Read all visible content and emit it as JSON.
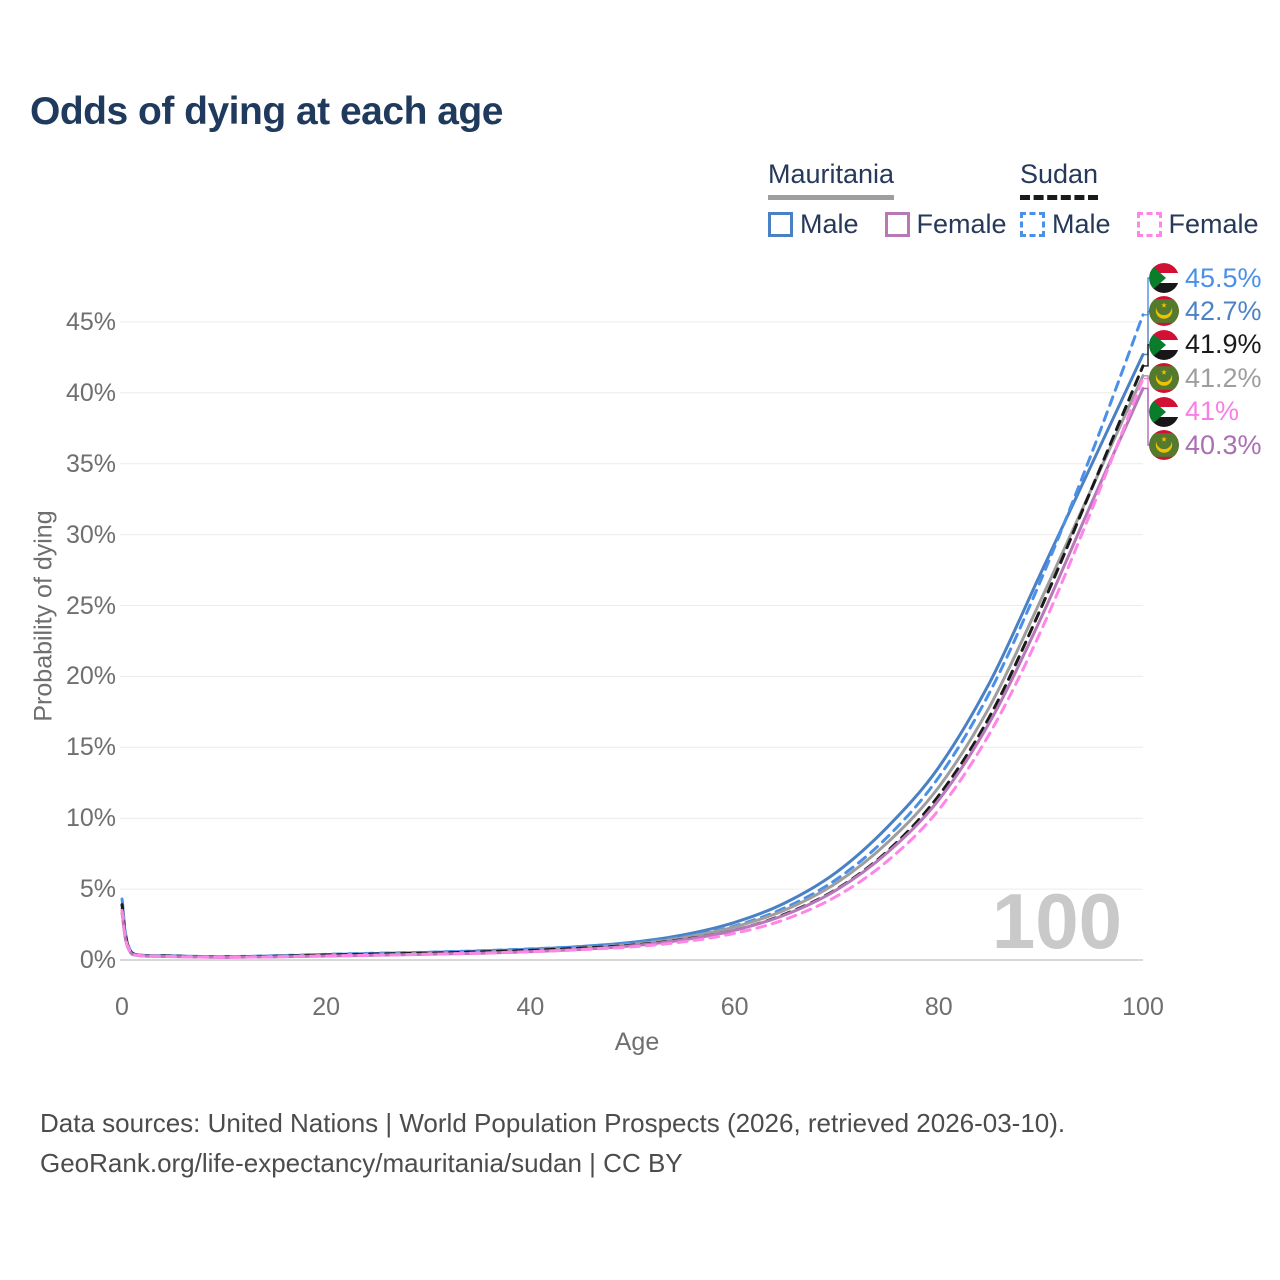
{
  "title": "Odds of dying at each age",
  "legend": {
    "groups": [
      {
        "country": "Mauritania",
        "line_style": "solid",
        "line_color": "#9e9e9e",
        "items": [
          {
            "label": "Male",
            "color": "#4a80c4",
            "dashed": false
          },
          {
            "label": "Female",
            "color": "#b778b8",
            "dashed": false
          }
        ]
      },
      {
        "country": "Sudan",
        "line_style": "dashed",
        "line_color": "#1a1a1a",
        "items": [
          {
            "label": "Male",
            "color": "#4a90e8",
            "dashed": true
          },
          {
            "label": "Female",
            "color": "#ff85e8",
            "dashed": true
          }
        ]
      }
    ]
  },
  "chart_data": {
    "type": "line",
    "title": "Odds of dying at each age",
    "xlabel": "Age",
    "ylabel": "Probability of dying",
    "x_ticks": [
      0,
      20,
      40,
      60,
      80,
      100
    ],
    "y_ticks": [
      "0%",
      "5%",
      "10%",
      "15%",
      "20%",
      "25%",
      "30%",
      "35%",
      "40%",
      "45%"
    ],
    "xlim": [
      0,
      100
    ],
    "ylim": [
      0,
      48.5
    ],
    "grid": "horizontal",
    "legend_position": "top-right",
    "watermark": "100",
    "x": [
      0,
      1,
      5,
      10,
      15,
      20,
      25,
      30,
      35,
      40,
      45,
      50,
      55,
      60,
      65,
      70,
      75,
      80,
      85,
      90,
      95,
      100
    ],
    "series": [
      {
        "id": "sudan-male",
        "name": "Sudan Male",
        "flag": "sudan",
        "color": "#4a90e8",
        "dash": true,
        "end_label": "45.5%",
        "label_color": "#4a90e8",
        "values": [
          4.3,
          0.5,
          0.3,
          0.24,
          0.3,
          0.4,
          0.48,
          0.55,
          0.65,
          0.78,
          0.95,
          1.2,
          1.65,
          2.4,
          3.7,
          5.7,
          8.7,
          12.9,
          18.9,
          26.8,
          35.8,
          45.5
        ]
      },
      {
        "id": "mauritania-male",
        "name": "Mauritania Male",
        "flag": "mauritania",
        "color": "#4a80c4",
        "dash": false,
        "end_label": "42.7%",
        "label_color": "#4d82c6",
        "values": [
          3.9,
          0.46,
          0.28,
          0.22,
          0.28,
          0.38,
          0.46,
          0.53,
          0.63,
          0.76,
          0.95,
          1.25,
          1.78,
          2.65,
          4.05,
          6.2,
          9.4,
          13.6,
          19.6,
          27.3,
          35.0,
          42.7
        ]
      },
      {
        "id": "sudan-both",
        "name": "Sudan Both sexes",
        "flag": "sudan",
        "color": "#1a1a1a",
        "dash": true,
        "end_label": "41.9%",
        "label_color": "#1a1a1a",
        "values": [
          3.9,
          0.46,
          0.28,
          0.22,
          0.27,
          0.35,
          0.42,
          0.48,
          0.57,
          0.68,
          0.84,
          1.05,
          1.45,
          2.1,
          3.25,
          5.0,
          7.7,
          11.6,
          17.2,
          24.8,
          33.3,
          41.9
        ]
      },
      {
        "id": "mauritania-both",
        "name": "Mauritania Both sexes",
        "flag": "mauritania",
        "color": "#9e9e9e",
        "dash": false,
        "end_label": "41.2%",
        "label_color": "#9e9e9e",
        "values": [
          3.6,
          0.43,
          0.26,
          0.2,
          0.25,
          0.33,
          0.4,
          0.46,
          0.55,
          0.67,
          0.85,
          1.1,
          1.57,
          2.33,
          3.55,
          5.45,
          8.3,
          12.2,
          17.9,
          25.4,
          33.3,
          41.2
        ]
      },
      {
        "id": "sudan-female",
        "name": "Sudan Female",
        "flag": "sudan",
        "color": "#ff85e8",
        "dash": true,
        "end_label": "41%",
        "label_color": "#fa7ee4",
        "values": [
          3.5,
          0.42,
          0.25,
          0.19,
          0.23,
          0.29,
          0.35,
          0.41,
          0.49,
          0.59,
          0.73,
          0.93,
          1.28,
          1.88,
          2.88,
          4.5,
          7.0,
          10.6,
          16.0,
          23.2,
          31.8,
          41.0
        ]
      },
      {
        "id": "mauritania-female",
        "name": "Mauritania Female",
        "flag": "mauritania",
        "color": "#b778b8",
        "dash": false,
        "end_label": "40.3%",
        "label_color": "#ab6fb3",
        "values": [
          3.3,
          0.4,
          0.24,
          0.18,
          0.22,
          0.28,
          0.34,
          0.4,
          0.48,
          0.59,
          0.75,
          1.0,
          1.42,
          2.1,
          3.2,
          4.95,
          7.6,
          11.3,
          16.8,
          24.1,
          32.3,
          40.3
        ]
      }
    ]
  },
  "footer": {
    "line1": "Data sources: United Nations | World Population Prospects (2026, retrieved 2026-03-10).",
    "line2": "GeoRank.org/life-expectancy/mauritania/sudan | CC BY"
  }
}
